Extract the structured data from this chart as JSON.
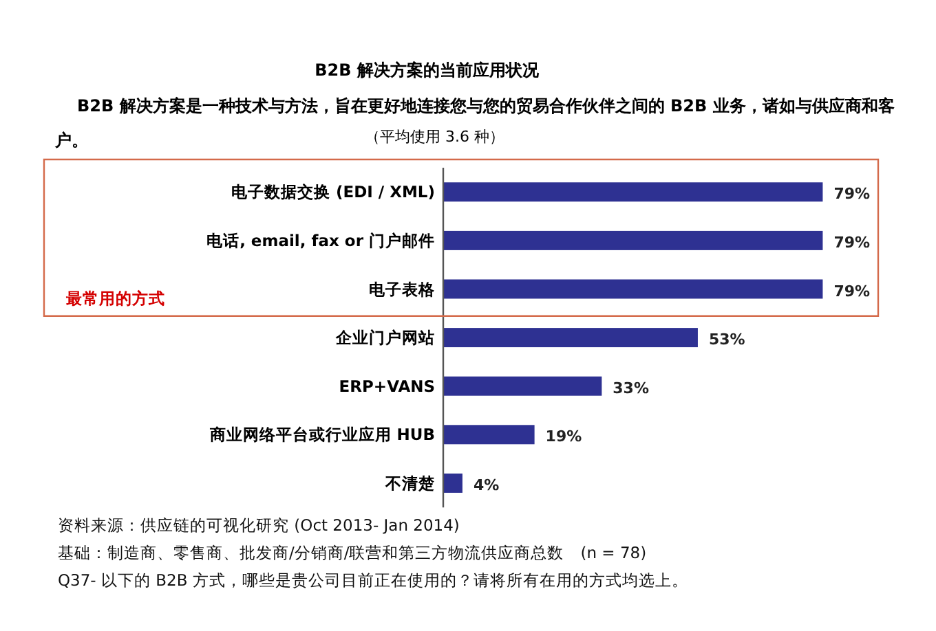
{
  "chart_data": {
    "type": "bar",
    "orientation": "horizontal",
    "title": "B2B 解决方案的当前应用状况",
    "subtitle": "B2B 解决方案是一种技术与方法，旨在更好地连接您与您的贸易合作伙伴之间的 B2B 业务，诸如与供应商和客户。",
    "categories": [
      "电子数据交换 (EDI / XML)",
      "电话, email, fax or 门户邮件",
      "电子表格",
      "企业门户网站",
      "ERP+VANS",
      "商业网络平台或行业应用 HUB",
      "不清楚"
    ],
    "values": [
      79,
      79,
      79,
      53,
      33,
      19,
      4
    ],
    "value_labels": [
      "79%",
      "79%",
      "79%",
      "53%",
      "33%",
      "19%",
      "4%"
    ],
    "color": "#2e3192",
    "annotations": [
      "最常用的方式",
      "（平均使用 3.6 种）",
      "资料来源：供应链的可视化研究 (Oct 2013- Jan 2014)",
      "基础：制造商、零售商、批发商/分销商/联营和第三方物流供应商总数　(n = 78)",
      "Q37- 以下的 B2B 方式，哪些是贵公司目前正在使用的？请将所有在用的方式均选上。"
    ]
  }
}
